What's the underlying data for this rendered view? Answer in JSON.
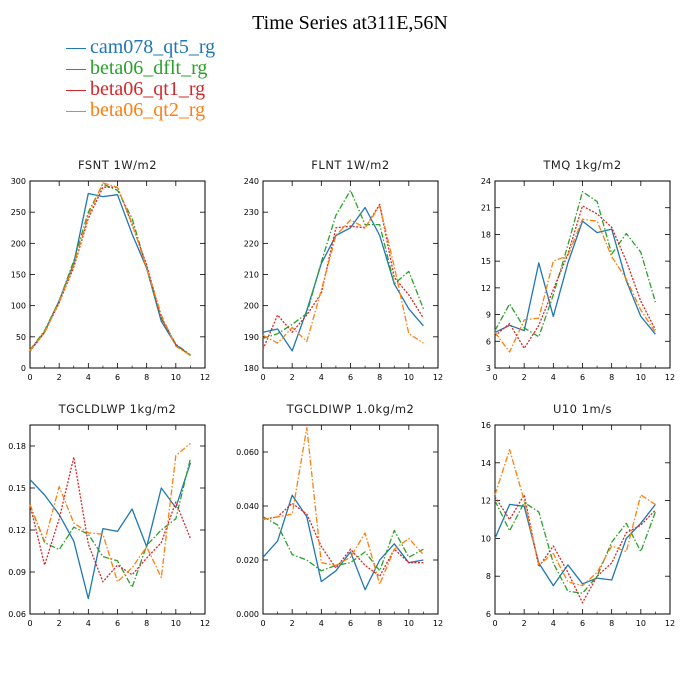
{
  "title": "Time Series at311E,56N",
  "legend": [
    {
      "name": "cam078_qt5_rg",
      "color": "#1f77b4",
      "dash": "solid"
    },
    {
      "name": "beta06_dflt_rg",
      "color": "#2ca02c",
      "dash": "dashdot"
    },
    {
      "name": "beta06_qt1_rg",
      "color": "#d62728",
      "dash": "dotted"
    },
    {
      "name": "beta06_qt2_rg",
      "color": "#ff7f0e",
      "dash": "dashdot"
    }
  ],
  "chart_data": [
    {
      "type": "line",
      "title": "FSNT   1W/m2",
      "x": [
        0,
        1,
        2,
        3,
        4,
        5,
        6,
        7,
        8,
        9,
        10,
        11
      ],
      "xlim": [
        0,
        12
      ],
      "xticks": [
        0,
        2,
        4,
        6,
        8,
        10,
        12
      ],
      "ylim": [
        0,
        300
      ],
      "yticks": [
        0,
        50,
        100,
        150,
        200,
        250,
        300
      ],
      "ytick_labels": [
        "0",
        "50",
        "100",
        "150",
        "200",
        "250",
        "300"
      ],
      "series": [
        {
          "name": "cam078_qt5_rg",
          "values": [
            28,
            58,
            108,
            168,
            280,
            275,
            278,
            215,
            160,
            75,
            37,
            20
          ]
        },
        {
          "name": "beta06_dflt_rg",
          "values": [
            29,
            60,
            108,
            172,
            250,
            295,
            285,
            240,
            160,
            80,
            38,
            21
          ]
        },
        {
          "name": "beta06_qt1_rg",
          "values": [
            27,
            57,
            105,
            162,
            240,
            290,
            290,
            230,
            165,
            80,
            38,
            20
          ]
        },
        {
          "name": "beta06_qt2_rg",
          "values": [
            28,
            57,
            106,
            165,
            245,
            297,
            290,
            232,
            160,
            85,
            35,
            20
          ]
        }
      ]
    },
    {
      "type": "line",
      "title": "FLNT   1W/m2",
      "x": [
        0,
        1,
        2,
        3,
        4,
        5,
        6,
        7,
        8,
        9,
        10,
        11
      ],
      "xlim": [
        0,
        12
      ],
      "xticks": [
        0,
        2,
        4,
        6,
        8,
        10,
        12
      ],
      "ylim": [
        180,
        240
      ],
      "yticks": [
        180,
        190,
        200,
        210,
        220,
        230,
        240
      ],
      "ytick_labels": [
        "180",
        "190",
        "200",
        "210",
        "220",
        "230",
        "240"
      ],
      "series": [
        {
          "name": "cam078_qt5_rg",
          "values": [
            191.5,
            192.5,
            185.5,
            198.5,
            213.5,
            222.5,
            225,
            231.5,
            222.5,
            207,
            199,
            193.5
          ]
        },
        {
          "name": "beta06_dflt_rg",
          "values": [
            189.5,
            191,
            194,
            197.5,
            214,
            229,
            237,
            226,
            226,
            207,
            211,
            199
          ]
        },
        {
          "name": "beta06_qt1_rg",
          "values": [
            186,
            197,
            191.5,
            197,
            204,
            225,
            225.5,
            225,
            232.5,
            209,
            203.5,
            196
          ]
        },
        {
          "name": "beta06_qt2_rg",
          "values": [
            190.5,
            188,
            193,
            188.5,
            205,
            222.5,
            227.5,
            225,
            232,
            212.5,
            191,
            188
          ]
        }
      ]
    },
    {
      "type": "line",
      "title": "TMQ   1kg/m2",
      "x": [
        0,
        1,
        2,
        3,
        4,
        5,
        6,
        7,
        8,
        9,
        10,
        11
      ],
      "xlim": [
        0,
        12
      ],
      "xticks": [
        0,
        2,
        4,
        6,
        8,
        10,
        12
      ],
      "ylim": [
        3,
        24
      ],
      "yticks": [
        3,
        6,
        9,
        12,
        15,
        18,
        21,
        24
      ],
      "ytick_labels": [
        "3",
        "6",
        "9",
        "12",
        "15",
        "18",
        "21",
        "24"
      ],
      "series": [
        {
          "name": "cam078_qt5_rg",
          "values": [
            7,
            7.8,
            7.2,
            14.8,
            8.8,
            14.8,
            19.5,
            18.2,
            18.6,
            12.8,
            8.8,
            6.8
          ]
        },
        {
          "name": "beta06_dflt_rg",
          "values": [
            7.2,
            10.2,
            7.5,
            6.5,
            11.2,
            16.8,
            22.8,
            21.7,
            15.8,
            18.1,
            16,
            10.4
          ]
        },
        {
          "name": "beta06_qt1_rg",
          "values": [
            6.6,
            8,
            5.2,
            7.8,
            11.8,
            15.8,
            21.2,
            20.3,
            18.8,
            15,
            10.5,
            7.3
          ]
        },
        {
          "name": "beta06_qt2_rg",
          "values": [
            7,
            4.8,
            8.4,
            8.6,
            15,
            15.6,
            19.7,
            19.5,
            15.5,
            13,
            9.5,
            7
          ]
        }
      ]
    },
    {
      "type": "line",
      "title": "TGCLDLWP   1kg/m2",
      "x": [
        0,
        1,
        2,
        3,
        4,
        5,
        6,
        7,
        8,
        9,
        10,
        11
      ],
      "xlim": [
        0,
        12
      ],
      "xticks": [
        0,
        2,
        4,
        6,
        8,
        10,
        12
      ],
      "ylim": [
        0.06,
        0.195
      ],
      "yticks": [
        0.06,
        0.09,
        0.12,
        0.15,
        0.18
      ],
      "ytick_labels": [
        "0.06",
        "0.09",
        "0.12",
        "0.15",
        "0.18"
      ],
      "series": [
        {
          "name": "cam078_qt5_rg",
          "values": [
            0.156,
            0.145,
            0.131,
            0.112,
            0.071,
            0.121,
            0.119,
            0.135,
            0.108,
            0.15,
            0.136,
            0.168
          ]
        },
        {
          "name": "beta06_dflt_rg",
          "values": [
            0.138,
            0.111,
            0.106,
            0.122,
            0.117,
            0.101,
            0.098,
            0.079,
            0.109,
            0.12,
            0.128,
            0.171
          ]
        },
        {
          "name": "beta06_qt1_rg",
          "values": [
            0.138,
            0.095,
            0.128,
            0.172,
            0.11,
            0.083,
            0.095,
            0.088,
            0.1,
            0.111,
            0.14,
            0.114
          ]
        },
        {
          "name": "beta06_qt2_rg",
          "values": [
            0.138,
            0.112,
            0.151,
            0.125,
            0.118,
            0.117,
            0.083,
            0.093,
            0.108,
            0.086,
            0.173,
            0.182
          ]
        }
      ]
    },
    {
      "type": "line",
      "title": "TGCLDIWP   1.0kg/m2",
      "x": [
        0,
        1,
        2,
        3,
        4,
        5,
        6,
        7,
        8,
        9,
        10,
        11
      ],
      "xlim": [
        0,
        12
      ],
      "xticks": [
        0,
        2,
        4,
        6,
        8,
        10,
        12
      ],
      "ylim": [
        0,
        0.07
      ],
      "yticks": [
        0,
        0.02,
        0.04,
        0.06
      ],
      "ytick_labels": [
        "0.000",
        "0.020",
        "0.040",
        "0.060"
      ],
      "series": [
        {
          "name": "cam078_qt5_rg",
          "values": [
            0.021,
            0.027,
            0.044,
            0.036,
            0.012,
            0.016,
            0.023,
            0.009,
            0.02,
            0.026,
            0.019,
            0.02
          ]
        },
        {
          "name": "beta06_dflt_rg",
          "values": [
            0.036,
            0.033,
            0.022,
            0.02,
            0.016,
            0.018,
            0.019,
            0.023,
            0.016,
            0.031,
            0.021,
            0.024
          ]
        },
        {
          "name": "beta06_qt1_rg",
          "values": [
            0.035,
            0.036,
            0.041,
            0.037,
            0.025,
            0.017,
            0.024,
            0.018,
            0.014,
            0.024,
            0.019,
            0.019
          ]
        },
        {
          "name": "beta06_qt2_rg",
          "values": [
            0.035,
            0.036,
            0.037,
            0.069,
            0.019,
            0.018,
            0.021,
            0.03,
            0.011,
            0.024,
            0.028,
            0.022
          ]
        }
      ]
    },
    {
      "type": "line",
      "title": "U10   1m/s",
      "x": [
        0,
        1,
        2,
        3,
        4,
        5,
        6,
        7,
        8,
        9,
        10,
        11
      ],
      "xlim": [
        0,
        12
      ],
      "xticks": [
        0,
        2,
        4,
        6,
        8,
        10,
        12
      ],
      "ylim": [
        6,
        16
      ],
      "yticks": [
        6,
        8,
        10,
        12,
        14,
        16
      ],
      "ytick_labels": [
        "6",
        "8",
        "10",
        "12",
        "14",
        "16"
      ],
      "series": [
        {
          "name": "cam078_qt5_rg",
          "values": [
            10,
            11.8,
            11.7,
            8.7,
            7.5,
            8.6,
            7.6,
            7.9,
            7.8,
            10,
            10.8,
            11.8
          ]
        },
        {
          "name": "beta06_dflt_rg",
          "values": [
            12,
            10.4,
            11.9,
            11.4,
            8.7,
            7.2,
            7.1,
            8,
            9.8,
            10.8,
            9.3,
            11.4
          ]
        },
        {
          "name": "beta06_qt1_rg",
          "values": [
            12.2,
            11,
            12.3,
            8.5,
            9.6,
            8.2,
            6.6,
            8,
            8.7,
            10.3,
            10.7,
            11.5
          ]
        },
        {
          "name": "beta06_qt2_rg",
          "values": [
            12.3,
            14.7,
            12,
            8.6,
            9.2,
            7.7,
            7.5,
            8.2,
            9.6,
            9.3,
            12.3,
            11.8
          ]
        }
      ]
    }
  ]
}
